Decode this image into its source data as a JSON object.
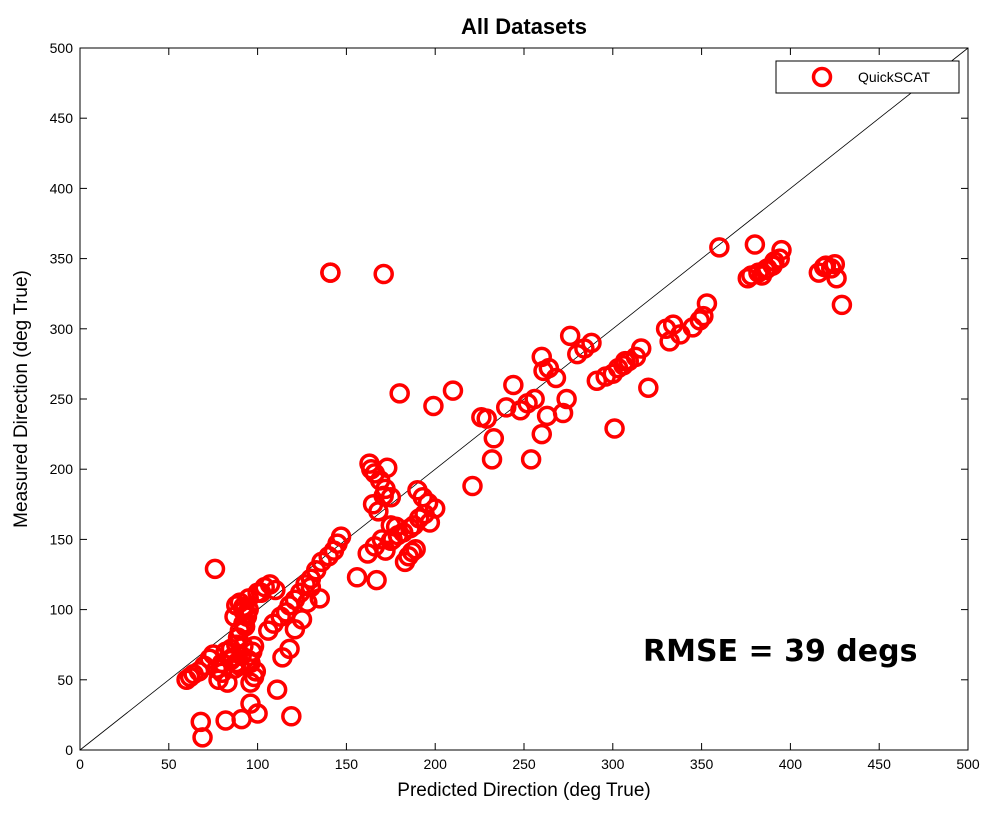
{
  "chart_data": {
    "type": "scatter",
    "title": "All Datasets",
    "xlabel": "Predicted Direction (deg True)",
    "ylabel": "Measured Direction (deg True)",
    "xlim": [
      0,
      500
    ],
    "ylim": [
      0,
      500
    ],
    "xticks": [
      0,
      50,
      100,
      150,
      200,
      250,
      300,
      350,
      400,
      450,
      500
    ],
    "yticks": [
      0,
      50,
      100,
      150,
      200,
      250,
      300,
      350,
      400,
      450,
      500
    ],
    "grid": false,
    "legend_position": "top-right",
    "reference_line": {
      "from": [
        0,
        0
      ],
      "to": [
        500,
        500
      ]
    },
    "annotation": "RMSE = 39 degs",
    "series": [
      {
        "name": "QuickSCAT",
        "color": "#ff0000",
        "marker": "circle-open",
        "x": [
          60,
          62,
          64,
          67,
          70,
          73,
          75,
          77,
          78,
          80,
          80,
          82,
          83,
          85,
          85,
          86,
          87,
          88,
          88,
          89,
          90,
          90,
          91,
          92,
          92,
          93,
          94,
          95,
          95,
          96,
          97,
          98,
          90,
          92,
          87,
          95,
          100,
          104,
          107,
          110,
          96,
          98,
          99,
          102,
          88,
          92,
          94,
          76,
          68,
          69,
          82,
          91,
          96,
          100,
          111,
          119,
          106,
          109,
          113,
          116,
          118,
          121,
          124,
          127,
          130,
          133,
          136,
          140,
          143,
          145,
          147,
          130,
          125,
          121,
          118,
          114,
          128,
          135,
          141,
          165,
          175,
          172,
          169,
          166,
          164,
          163,
          168,
          171,
          173,
          176,
          178,
          167,
          172,
          175,
          179,
          182,
          186,
          188,
          191,
          194,
          197,
          200,
          190,
          193,
          196,
          183,
          185,
          187,
          189,
          180,
          175,
          170,
          166,
          156,
          162,
          141,
          171,
          199,
          210,
          221,
          226,
          233,
          229,
          232,
          240,
          244,
          248,
          252,
          256,
          260,
          264,
          260,
          263,
          254,
          261,
          268,
          272,
          274,
          276,
          280,
          284,
          288,
          291,
          296,
          300,
          303,
          306,
          309,
          313,
          316,
          320,
          307,
          301,
          330,
          334,
          332,
          338,
          345,
          349,
          351,
          353,
          360,
          380,
          376,
          378,
          382,
          386,
          390,
          394,
          395,
          391,
          387,
          384,
          416,
          419,
          423,
          426,
          429,
          420,
          425
        ],
        "y": [
          50,
          52,
          54,
          56,
          60,
          65,
          68,
          58,
          50,
          55,
          62,
          70,
          48,
          64,
          72,
          66,
          58,
          75,
          62,
          80,
          85,
          60,
          67,
          74,
          90,
          88,
          95,
          100,
          64,
          62,
          70,
          74,
          105,
          102,
          95,
          108,
          112,
          116,
          118,
          114,
          48,
          52,
          56,
          112,
          103,
          99,
          97,
          129,
          20,
          9,
          21,
          22,
          33,
          26,
          43,
          24,
          85,
          90,
          95,
          98,
          103,
          107,
          112,
          118,
          122,
          128,
          134,
          138,
          142,
          147,
          152,
          116,
          93,
          86,
          72,
          66,
          105,
          108,
          340,
          175,
          180,
          186,
          192,
          197,
          200,
          204,
          170,
          181,
          201,
          150,
          159,
          121,
          142,
          149,
          153,
          155,
          158,
          160,
          165,
          168,
          162,
          172,
          185,
          180,
          176,
          134,
          138,
          141,
          143,
          254,
          160,
          150,
          145,
          123,
          140,
          340,
          339,
          245,
          256,
          188,
          237,
          222,
          236,
          207,
          244,
          260,
          242,
          247,
          250,
          280,
          272,
          225,
          238,
          207,
          270,
          265,
          240,
          250,
          295,
          282,
          286,
          290,
          263,
          266,
          268,
          272,
          274,
          277,
          280,
          286,
          258,
          277,
          229,
          300,
          303,
          291,
          296,
          301,
          306,
          309,
          318,
          358,
          360,
          336,
          338,
          340,
          342,
          345,
          350,
          356,
          348,
          343,
          338,
          340,
          344,
          343,
          336,
          317,
          345,
          346
        ]
      }
    ]
  }
}
